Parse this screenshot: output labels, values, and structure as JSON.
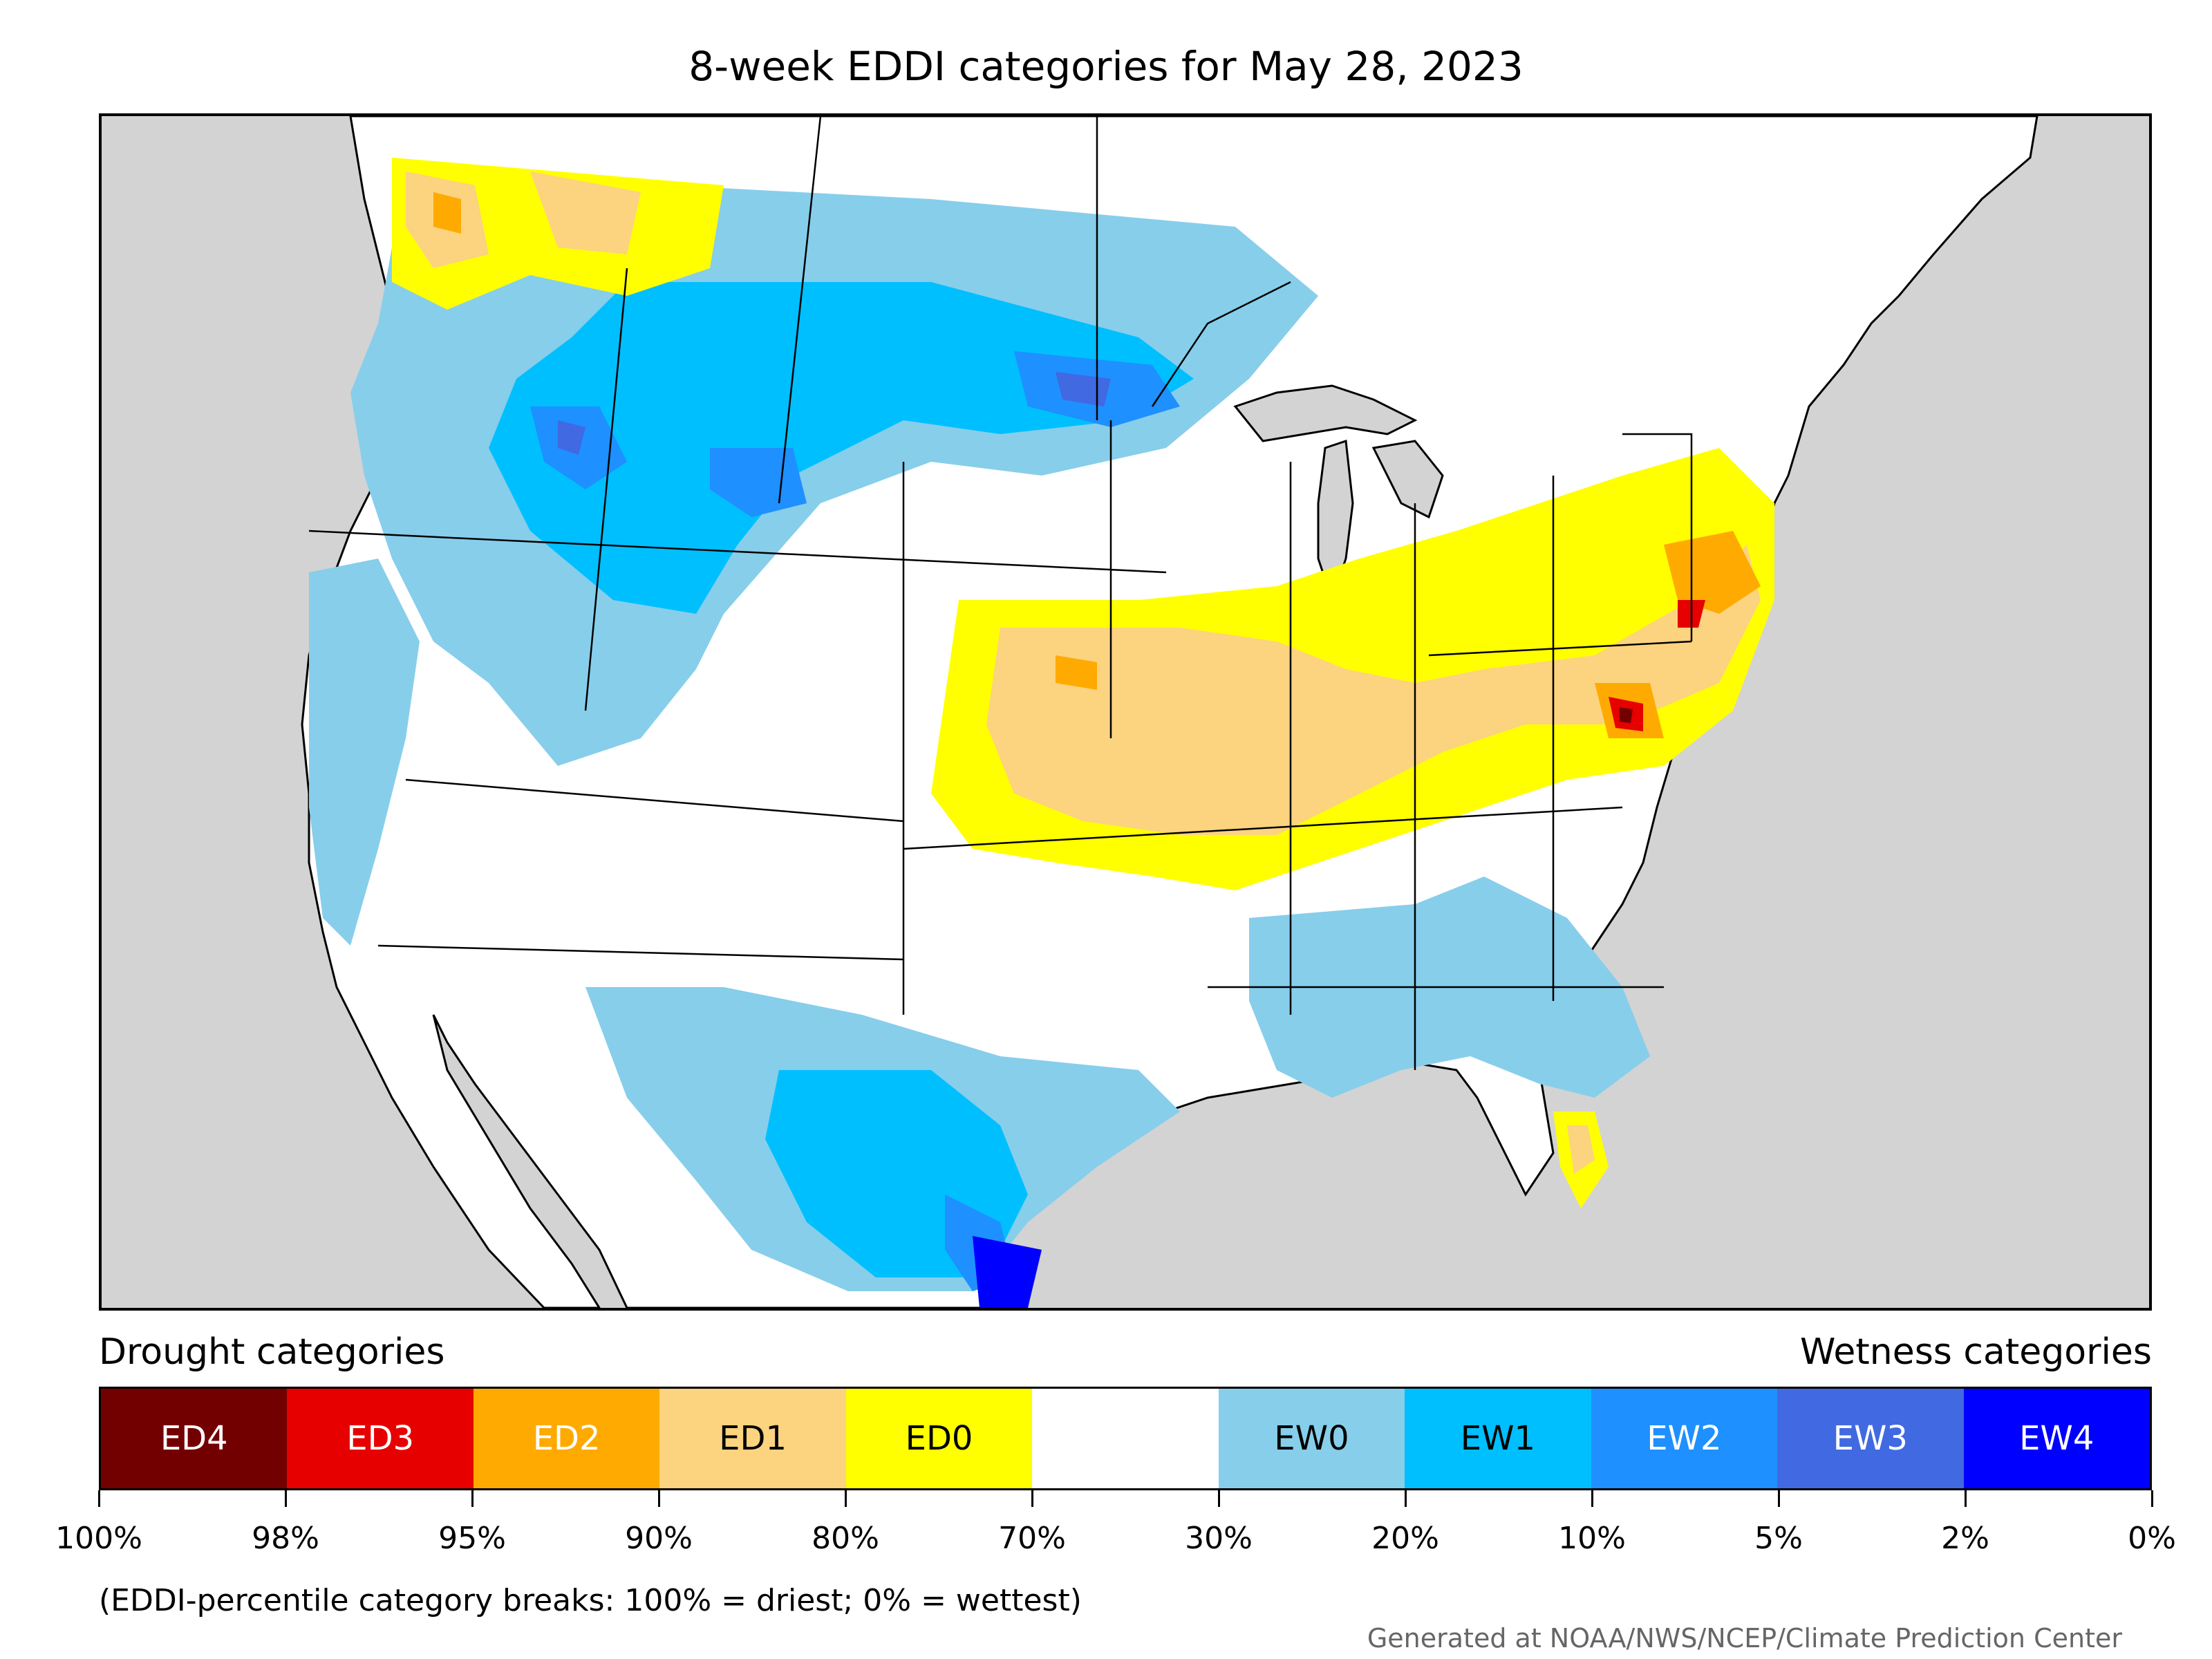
{
  "title": "8-week EDDI categories for May 28, 2023",
  "legend": {
    "drought_title": "Drought categories",
    "wetness_title": "Wetness categories",
    "categories": [
      {
        "label": "ED4",
        "color": "#730000",
        "text_color": "#ffffff"
      },
      {
        "label": "ED3",
        "color": "#e60000",
        "text_color": "#ffffff"
      },
      {
        "label": "ED2",
        "color": "#ffaa00",
        "text_color": "#ffffff"
      },
      {
        "label": "ED1",
        "color": "#fcd37f",
        "text_color": "#000000"
      },
      {
        "label": "ED0",
        "color": "#ffff00",
        "text_color": "#000000"
      },
      {
        "label": "",
        "color": "#ffffff",
        "text_color": "#000000"
      },
      {
        "label": "EW0",
        "color": "#87ceeb",
        "text_color": "#000000"
      },
      {
        "label": "EW1",
        "color": "#00bfff",
        "text_color": "#000000"
      },
      {
        "label": "EW2",
        "color": "#1e90ff",
        "text_color": "#ffffff"
      },
      {
        "label": "EW3",
        "color": "#4169e1",
        "text_color": "#ffffff"
      },
      {
        "label": "EW4",
        "color": "#0000ff",
        "text_color": "#ffffff"
      }
    ],
    "tick_labels": [
      "100%",
      "98%",
      "95%",
      "90%",
      "80%",
      "70%",
      "30%",
      "20%",
      "10%",
      "5%",
      "2%",
      "0%"
    ],
    "note": "(EDDI-percentile category breaks: 100% = driest; 0% = wettest)"
  },
  "credit": "Generated at NOAA/NWS/NCEP/Climate Prediction Center",
  "colors": {
    "ocean_background": "#d3d3d3",
    "land": "#ffffff",
    "border": "#000000"
  }
}
